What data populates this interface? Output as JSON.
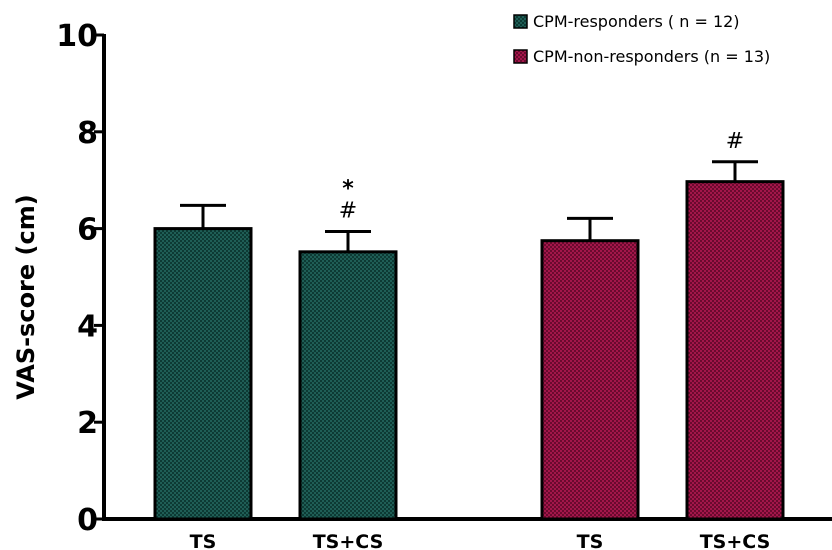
{
  "chart_data": {
    "type": "bar",
    "ylabel": "VAS-score (cm)",
    "ylim": [
      0,
      10
    ],
    "yticks": [
      "0",
      "2",
      "4",
      "6",
      "8",
      "10"
    ],
    "grid": false,
    "legend_position": "top-right",
    "bars": [
      {
        "category": "TS",
        "series": "CPM-responders ( n = 12)",
        "value": 6.0,
        "error": 0.48,
        "annotations": []
      },
      {
        "category": "TS+CS",
        "series": "CPM-responders ( n = 12)",
        "value": 5.52,
        "error": 0.42,
        "annotations": [
          "*",
          "#"
        ]
      },
      {
        "category": "TS",
        "series": "CPM-non-responders (n = 13)",
        "value": 5.75,
        "error": 0.46,
        "annotations": []
      },
      {
        "category": "TS+CS",
        "series": "CPM-non-responders (n = 13)",
        "value": 6.97,
        "error": 0.41,
        "annotations": [
          "#"
        ]
      }
    ],
    "series": [
      {
        "name": "CPM-responders ( n = 12)",
        "color": "#1f5e56"
      },
      {
        "name": "CPM-non-responders (n = 13)",
        "color": "#a3164a"
      }
    ]
  }
}
